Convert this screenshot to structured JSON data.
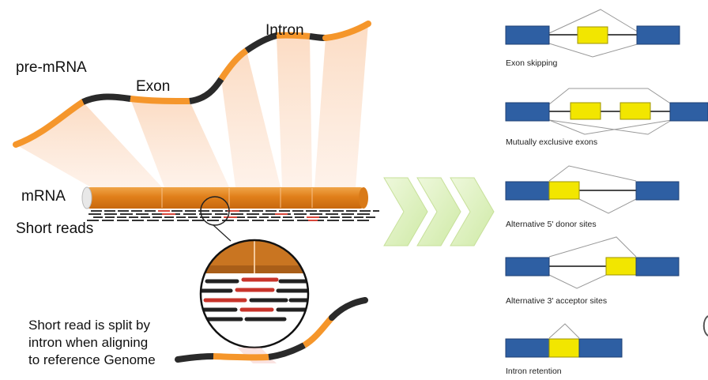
{
  "left": {
    "pre_mrna": "pre-mRNA",
    "exon": "Exon",
    "intron": "Intron",
    "mrna": "mRNA",
    "short_reads": "Short reads",
    "split_note": [
      "Short read is split by",
      "intron when aligning",
      "to reference Genome"
    ]
  },
  "right": {
    "panels": [
      {
        "caption": "Exon skipping"
      },
      {
        "caption": "Mutually exclusive exons"
      },
      {
        "caption": "Alternative 5' donor sites"
      },
      {
        "caption": "Alternative 3' acceptor sites"
      },
      {
        "caption": "Intron retention"
      }
    ]
  },
  "colors": {
    "exon_orange": "#f5962b",
    "intron_dark": "#2a2a2a",
    "read_red": "#c8332a",
    "blue_exon": "#2e5fa3",
    "yellow_exon": "#f2e600",
    "arrow_green": "#dff2c0"
  }
}
